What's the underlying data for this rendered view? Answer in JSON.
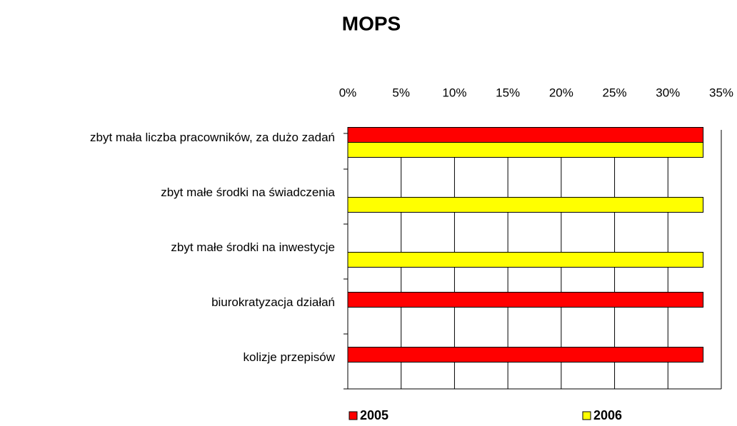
{
  "chart_data": {
    "type": "bar",
    "orientation": "horizontal",
    "title": "MOPS",
    "categories": [
      "zbyt mała liczba pracowników, za dużo zadań",
      "zbyt małe środki na świadczenia",
      "zbyt małe środki na inwestycje",
      "biurokratyzacja działań",
      "kolizje przepisów"
    ],
    "series": [
      {
        "name": "2005",
        "color": "#ff0000",
        "values": [
          33.3,
          null,
          null,
          33.3,
          33.3
        ]
      },
      {
        "name": "2006",
        "color": "#ffff00",
        "values": [
          33.3,
          33.3,
          33.3,
          null,
          null
        ]
      }
    ],
    "xlim": [
      0,
      35
    ],
    "xticks": [
      {
        "value": 0,
        "label": "0%"
      },
      {
        "value": 5,
        "label": "5%"
      },
      {
        "value": 10,
        "label": "10%"
      },
      {
        "value": 15,
        "label": "15%"
      },
      {
        "value": 20,
        "label": "20%"
      },
      {
        "value": 25,
        "label": "25%"
      },
      {
        "value": 30,
        "label": "30%"
      },
      {
        "value": 35,
        "label": "35%"
      }
    ],
    "grid": true,
    "legend": "bottom"
  }
}
